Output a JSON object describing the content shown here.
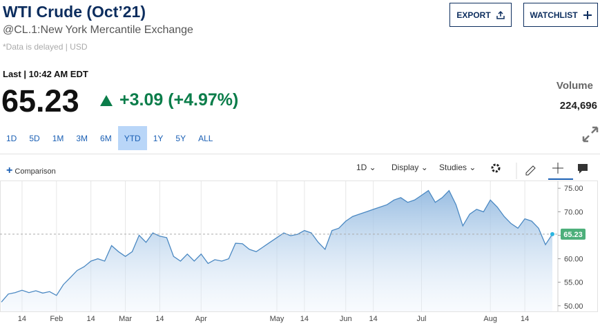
{
  "header": {
    "title": "WTI Crude (Oct’21)",
    "subtitle": "@CL.1:New York Mercantile Exchange",
    "note": "*Data is delayed | USD",
    "export": "EXPORT",
    "watchlist": "WATCHLIST"
  },
  "quote": {
    "last_label": "Last | 10:42 AM EDT",
    "price": 65.23,
    "change": "+3.09 (+4.97%)",
    "volume_label": "Volume",
    "volume": "224,696"
  },
  "ranges": [
    "1D",
    "5D",
    "1M",
    "3M",
    "6M",
    "YTD",
    "1Y",
    "5Y",
    "ALL"
  ],
  "selected_range": 5,
  "toolbar": {
    "comparison": "Comparison",
    "interval": "1D",
    "display": "Display",
    "studies": "Studies"
  },
  "chart_data": {
    "type": "area",
    "color": "#4a88c2",
    "categories": [
      null,
      null,
      null,
      "14",
      null,
      null,
      null,
      null,
      "Feb",
      null,
      null,
      null,
      null,
      "14",
      null,
      null,
      null,
      null,
      "Mar",
      null,
      null,
      null,
      null,
      "14",
      null,
      null,
      null,
      null,
      null,
      "Apr",
      null,
      null,
      null,
      null,
      null,
      null,
      null,
      null,
      null,
      null,
      "May",
      null,
      null,
      null,
      "14",
      null,
      null,
      null,
      null,
      null,
      "Jun",
      null,
      null,
      null,
      "14",
      null,
      null,
      null,
      null,
      null,
      null,
      "Jul",
      null,
      null,
      null,
      null,
      null,
      null,
      null,
      null,
      null,
      "Aug",
      null,
      null,
      null,
      null,
      "14",
      null,
      null,
      null,
      null
    ],
    "values": [
      50.8,
      52.5,
      52.8,
      53.3,
      52.8,
      53.2,
      52.7,
      53.0,
      52.2,
      54.5,
      56.0,
      57.5,
      58.3,
      59.5,
      60.0,
      59.5,
      62.8,
      61.5,
      60.5,
      61.5,
      65.0,
      63.5,
      65.5,
      64.8,
      64.5,
      60.5,
      59.5,
      61.0,
      59.5,
      61.0,
      59.0,
      59.8,
      59.5,
      60.0,
      63.3,
      63.2,
      62.0,
      61.5,
      62.5,
      63.5,
      64.5,
      65.5,
      64.9,
      65.2,
      66.0,
      65.5,
      63.5,
      62.0,
      66.0,
      66.5,
      68.0,
      69.0,
      69.5,
      70.0,
      70.5,
      71.0,
      71.5,
      72.5,
      73.0,
      72.0,
      72.5,
      73.5,
      74.5,
      72.0,
      73.0,
      74.5,
      71.5,
      67.0,
      69.5,
      70.5,
      70.0,
      72.5,
      71.0,
      69.0,
      67.5,
      66.5,
      68.5,
      68.0,
      66.5,
      63.0,
      65.23
    ],
    "ylim": [
      48.8,
      76.5
    ],
    "yticks": [
      {
        "value": 50,
        "label": "50.00"
      },
      {
        "value": 55,
        "label": "55.00"
      },
      {
        "value": 60,
        "label": "60.00"
      },
      {
        "value": 65,
        "label": "65.00"
      },
      {
        "value": 70,
        "label": "70.00"
      },
      {
        "value": 75,
        "label": "75.00"
      }
    ]
  }
}
